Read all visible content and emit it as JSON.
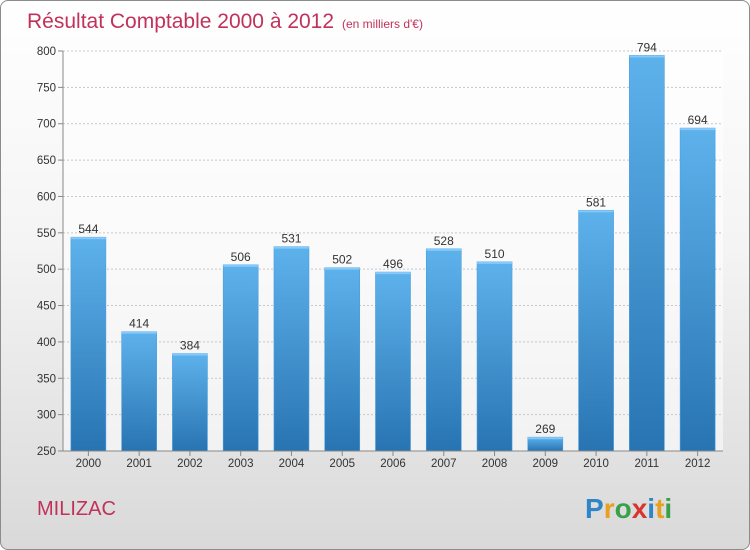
{
  "chart_data": {
    "type": "bar",
    "title": "Résultat Comptable 2000 à 2012",
    "subtitle": "(en milliers d'€)",
    "categories": [
      "2000",
      "2001",
      "2002",
      "2003",
      "2004",
      "2005",
      "2006",
      "2007",
      "2008",
      "2009",
      "2010",
      "2011",
      "2012"
    ],
    "values": [
      544,
      414,
      384,
      506,
      531,
      502,
      496,
      528,
      510,
      269,
      581,
      794,
      694
    ],
    "ylim": [
      250,
      800
    ],
    "yticks": [
      250,
      300,
      350,
      400,
      450,
      500,
      550,
      600,
      650,
      700,
      750,
      800
    ],
    "grid": true,
    "xlabel": "",
    "ylabel": ""
  },
  "footer": {
    "city": "MILIZAC",
    "logo": "Proxiti"
  },
  "colors": {
    "bar_light": "#5aaee8",
    "bar_dark": "#2a78b6",
    "title": "#c0325a"
  }
}
